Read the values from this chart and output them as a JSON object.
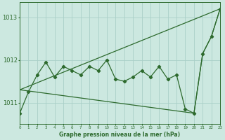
{
  "xlabel": "Graphe pression niveau de la mer (hPa)",
  "hours": [
    0,
    1,
    2,
    3,
    4,
    5,
    6,
    7,
    8,
    9,
    10,
    11,
    12,
    13,
    14,
    15,
    16,
    17,
    18,
    19,
    20,
    21,
    22,
    23
  ],
  "pressure": [
    1010.75,
    1011.25,
    1011.65,
    1011.95,
    1011.6,
    1011.85,
    1011.75,
    1011.65,
    1011.85,
    1011.75,
    1012.0,
    1011.55,
    1011.5,
    1011.6,
    1011.75,
    1011.6,
    1011.85,
    1011.55,
    1011.65,
    1010.85,
    1010.75,
    1012.15,
    1012.55,
    1013.2
  ],
  "upper_line_x": [
    0,
    23
  ],
  "upper_line_y": [
    1011.3,
    1013.2
  ],
  "lower_line_x": [
    0,
    20,
    21,
    22,
    23
  ],
  "lower_line_y": [
    1011.3,
    1010.75,
    1012.15,
    1012.55,
    1013.2
  ],
  "line_color": "#2d6a2d",
  "bg_color": "#cce8e0",
  "grid_color": "#aacfc8",
  "ylim": [
    1010.5,
    1013.35
  ],
  "xlim": [
    0,
    23
  ],
  "yticks": [
    1011,
    1012,
    1013
  ],
  "tick_fontsize": 6,
  "xlabel_fontsize": 5.5
}
